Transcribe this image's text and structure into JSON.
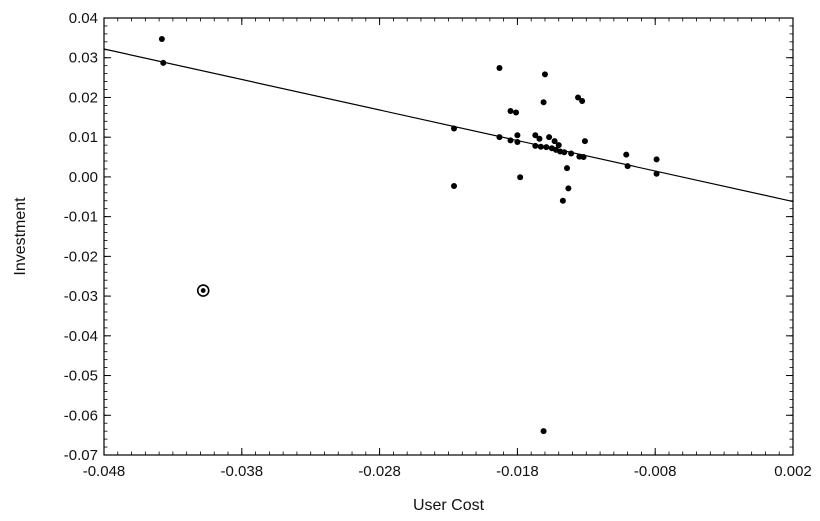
{
  "chart_data": {
    "type": "scatter",
    "title": "",
    "xlabel": "User Cost",
    "ylabel": "Investment",
    "xlim": [
      -0.048,
      0.002
    ],
    "ylim": [
      -0.07,
      0.04
    ],
    "x_ticks": [
      "-0.048",
      "-0.038",
      "-0.028",
      "-0.018",
      "-0.008",
      "0.002"
    ],
    "y_ticks": [
      "0.04",
      "0.03",
      "0.02",
      "0.01",
      "0.00",
      "-0.01",
      "-0.02",
      "-0.03",
      "-0.04",
      "-0.05",
      "-0.06",
      "-0.07"
    ],
    "grid": false,
    "legend": "none",
    "fit_line": {
      "x": [
        -0.048,
        0.002
      ],
      "y": [
        0.0322,
        -0.0062
      ]
    },
    "points": [
      {
        "x": -0.0438,
        "y": 0.0347
      },
      {
        "x": -0.0437,
        "y": 0.0287
      },
      {
        "x": -0.0408,
        "y": -0.0286,
        "highlight": true
      },
      {
        "x": -0.0226,
        "y": 0.0122
      },
      {
        "x": -0.0226,
        "y": -0.0023
      },
      {
        "x": -0.0193,
        "y": 0.0274
      },
      {
        "x": -0.0193,
        "y": 0.01
      },
      {
        "x": -0.0185,
        "y": 0.0166
      },
      {
        "x": -0.0185,
        "y": 0.0092
      },
      {
        "x": -0.0181,
        "y": 0.0162
      },
      {
        "x": -0.018,
        "y": 0.0105
      },
      {
        "x": -0.018,
        "y": 0.0088
      },
      {
        "x": -0.0178,
        "y": -0.0001
      },
      {
        "x": -0.0167,
        "y": 0.0105
      },
      {
        "x": -0.0167,
        "y": 0.0078
      },
      {
        "x": -0.0164,
        "y": 0.0096
      },
      {
        "x": -0.0163,
        "y": 0.0076
      },
      {
        "x": -0.0161,
        "y": 0.0188
      },
      {
        "x": -0.0161,
        "y": -0.064
      },
      {
        "x": -0.016,
        "y": 0.0258
      },
      {
        "x": -0.0159,
        "y": 0.0075
      },
      {
        "x": -0.0157,
        "y": 0.01
      },
      {
        "x": -0.0155,
        "y": 0.0072
      },
      {
        "x": -0.0153,
        "y": 0.009
      },
      {
        "x": -0.0152,
        "y": 0.0068
      },
      {
        "x": -0.015,
        "y": 0.008
      },
      {
        "x": -0.0149,
        "y": 0.0064
      },
      {
        "x": -0.0147,
        "y": -0.006
      },
      {
        "x": -0.0146,
        "y": 0.0062
      },
      {
        "x": -0.0144,
        "y": 0.0022
      },
      {
        "x": -0.0143,
        "y": -0.0029
      },
      {
        "x": -0.0141,
        "y": 0.0059
      },
      {
        "x": -0.0136,
        "y": 0.02
      },
      {
        "x": -0.0135,
        "y": 0.0051
      },
      {
        "x": -0.0133,
        "y": 0.0191
      },
      {
        "x": -0.0132,
        "y": 0.005
      },
      {
        "x": -0.0131,
        "y": 0.009
      },
      {
        "x": -0.0101,
        "y": 0.0056
      },
      {
        "x": -0.01,
        "y": 0.0027
      },
      {
        "x": -0.0079,
        "y": 0.0044
      },
      {
        "x": -0.0079,
        "y": 0.0008
      }
    ]
  }
}
